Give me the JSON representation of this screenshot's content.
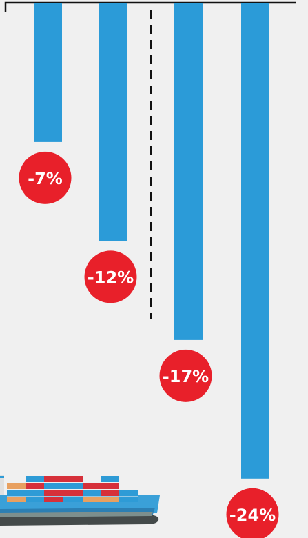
{
  "chart_data": {
    "type": "bar",
    "orientation": "downward",
    "categories": [
      "",
      "",
      "",
      ""
    ],
    "values": [
      -7,
      -12,
      -17,
      -24
    ],
    "data_labels": [
      "-7%",
      "-12%",
      "-17%",
      "-24%"
    ],
    "unit": "%",
    "ylim": [
      -24,
      0
    ],
    "grid": false,
    "legend": "none",
    "divider_after_index": 1,
    "colors": {
      "bar": "#2b9bd8",
      "label_circle": "#e8202a",
      "label_text": "#ffffff",
      "axis": "#111111",
      "background": "#f0f0f0"
    }
  },
  "illustration": {
    "icon": "container-ship-icon"
  }
}
